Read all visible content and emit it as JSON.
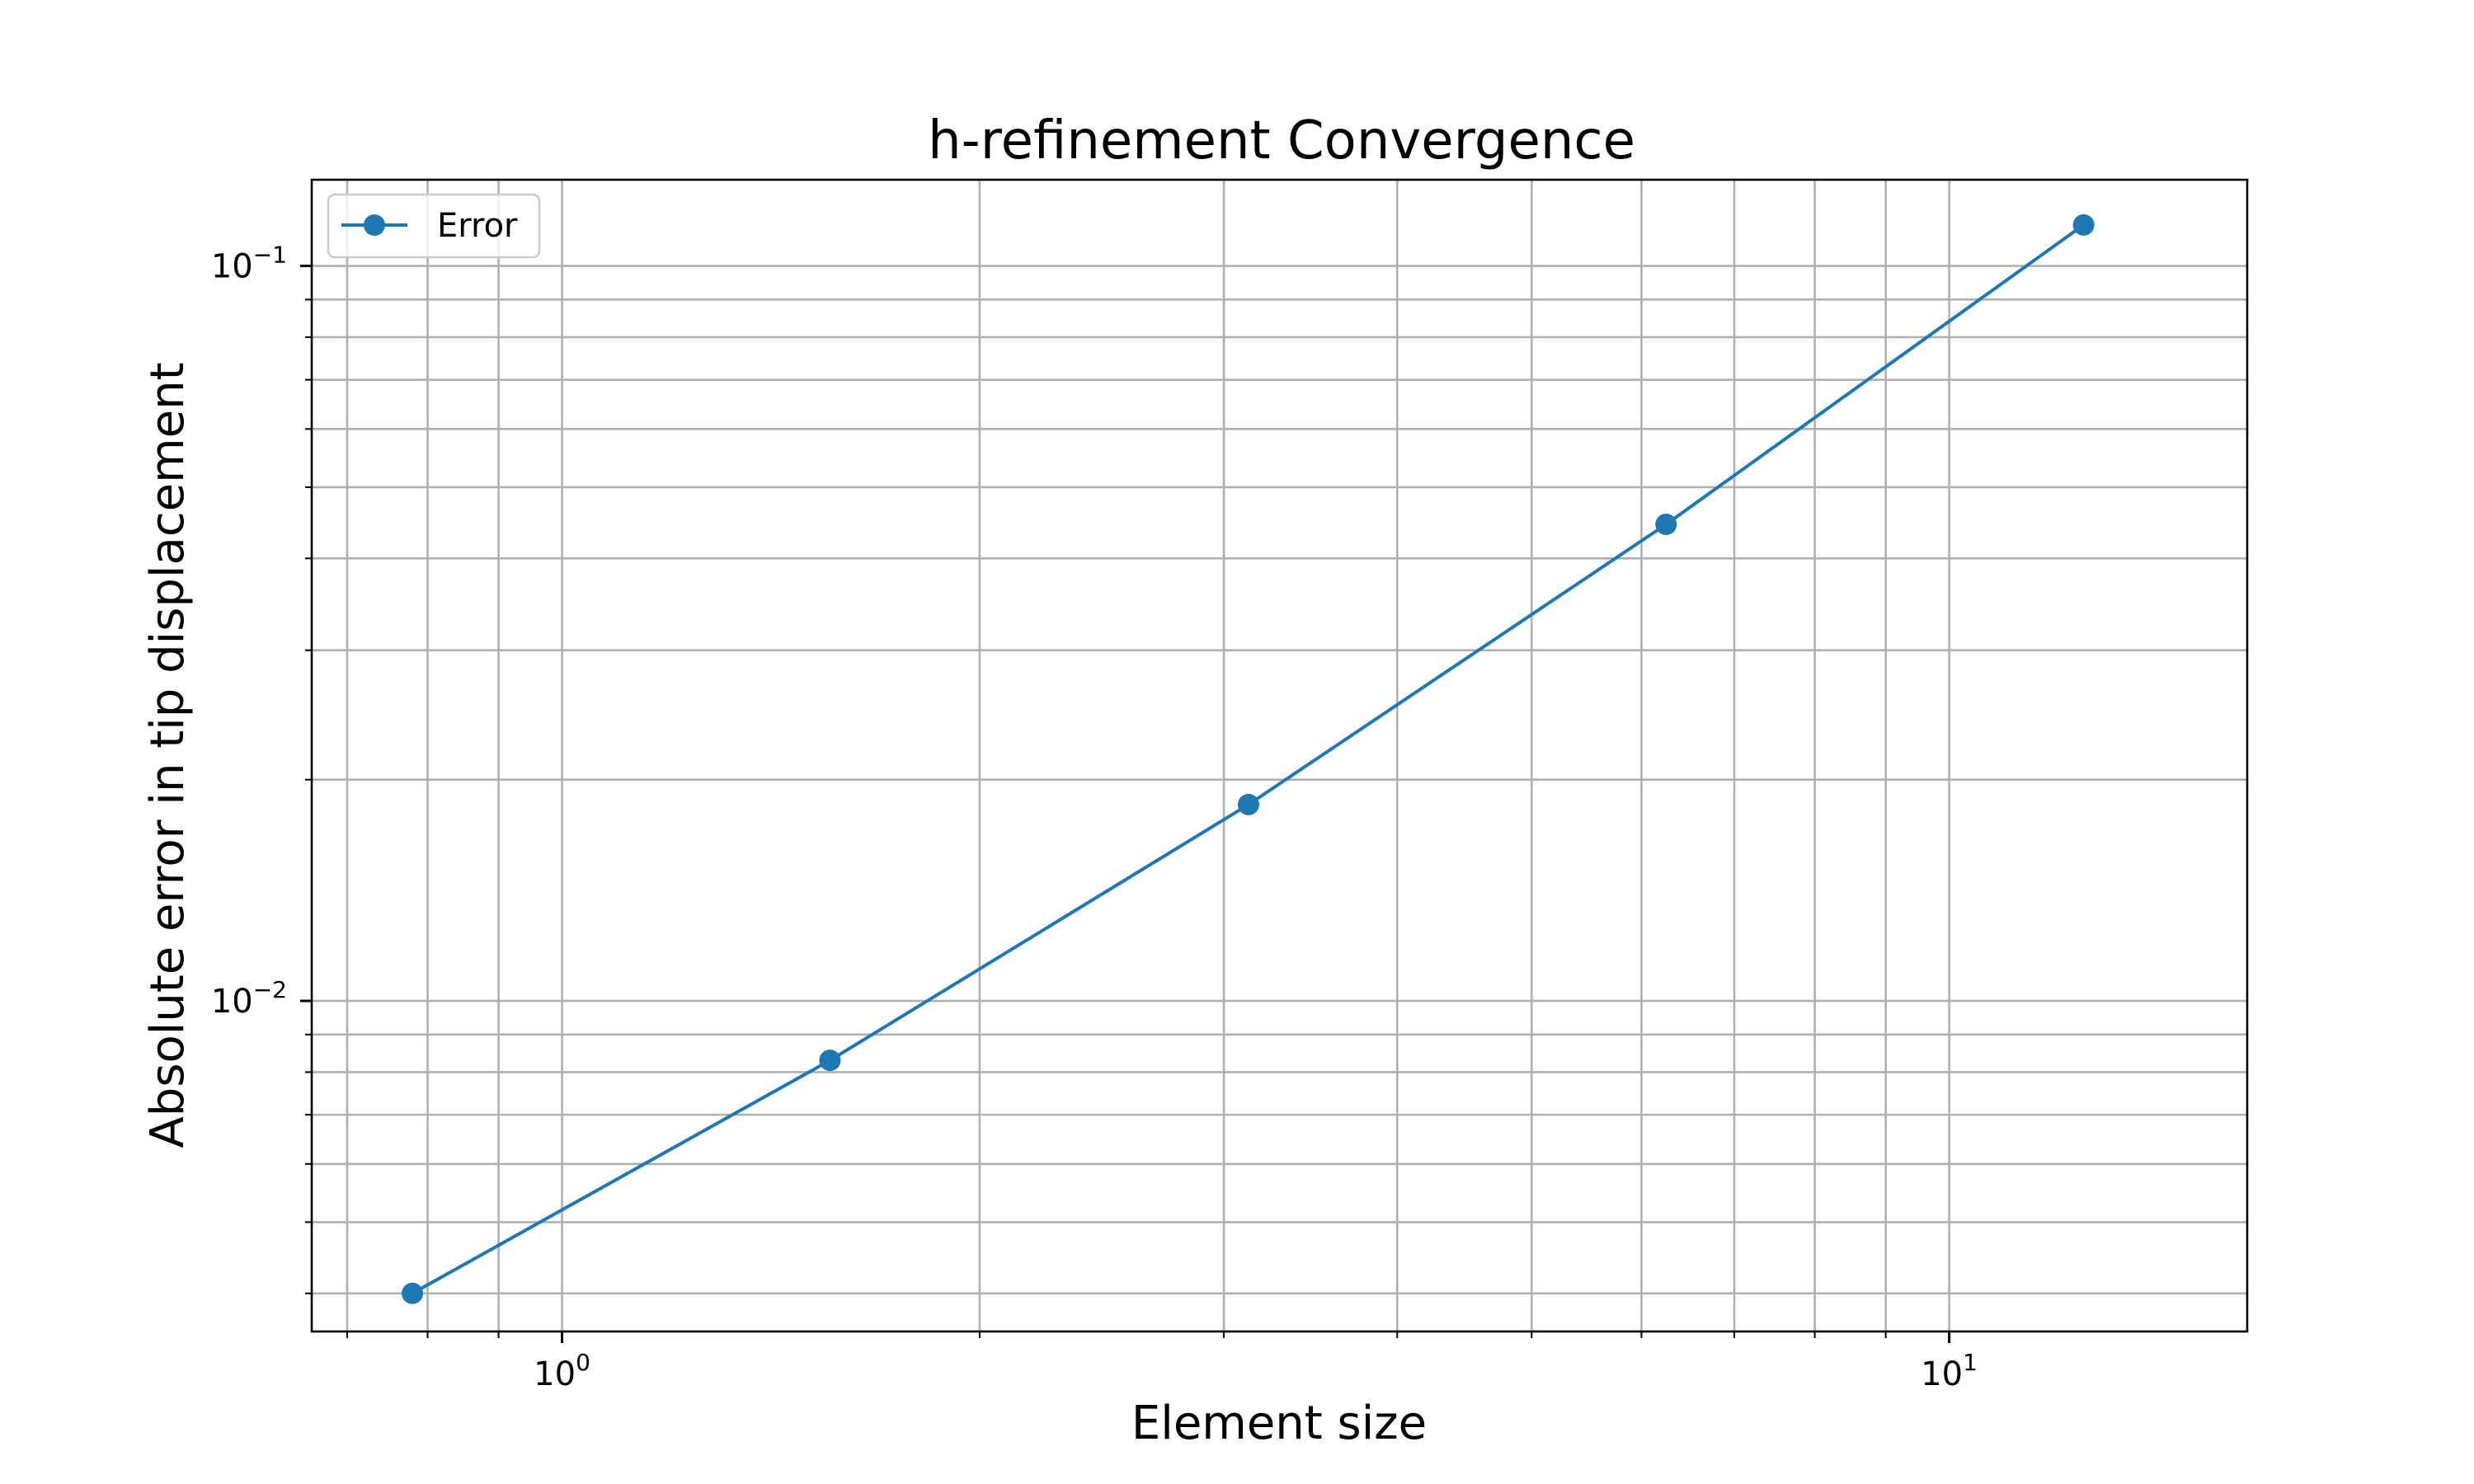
{
  "chart_data": {
    "type": "line",
    "title": "h-refinement Convergence",
    "xlabel": "Element size",
    "ylabel": "Absolute error in tip displacement",
    "xscale": "log",
    "yscale": "log",
    "xlim": [
      0.66,
      16.4
    ],
    "ylim": [
      0.00355,
      0.131
    ],
    "grid": true,
    "grid_which": "both",
    "legend_position": "top-left",
    "x_major_ticks": [
      {
        "value": 1,
        "base": "10",
        "exp": "0"
      },
      {
        "value": 10,
        "base": "10",
        "exp": "1"
      }
    ],
    "y_major_ticks": [
      {
        "value": 0.01,
        "base": "10",
        "exp": "−2"
      },
      {
        "value": 0.1,
        "base": "10",
        "exp": "−1"
      }
    ],
    "series": [
      {
        "name": "Error",
        "color": "#1f77b4",
        "marker": "circle",
        "x": [
          0.78,
          1.56,
          3.125,
          6.25,
          12.5
        ],
        "y": [
          0.004,
          0.0083,
          0.0185,
          0.0445,
          0.1137
        ]
      }
    ]
  }
}
